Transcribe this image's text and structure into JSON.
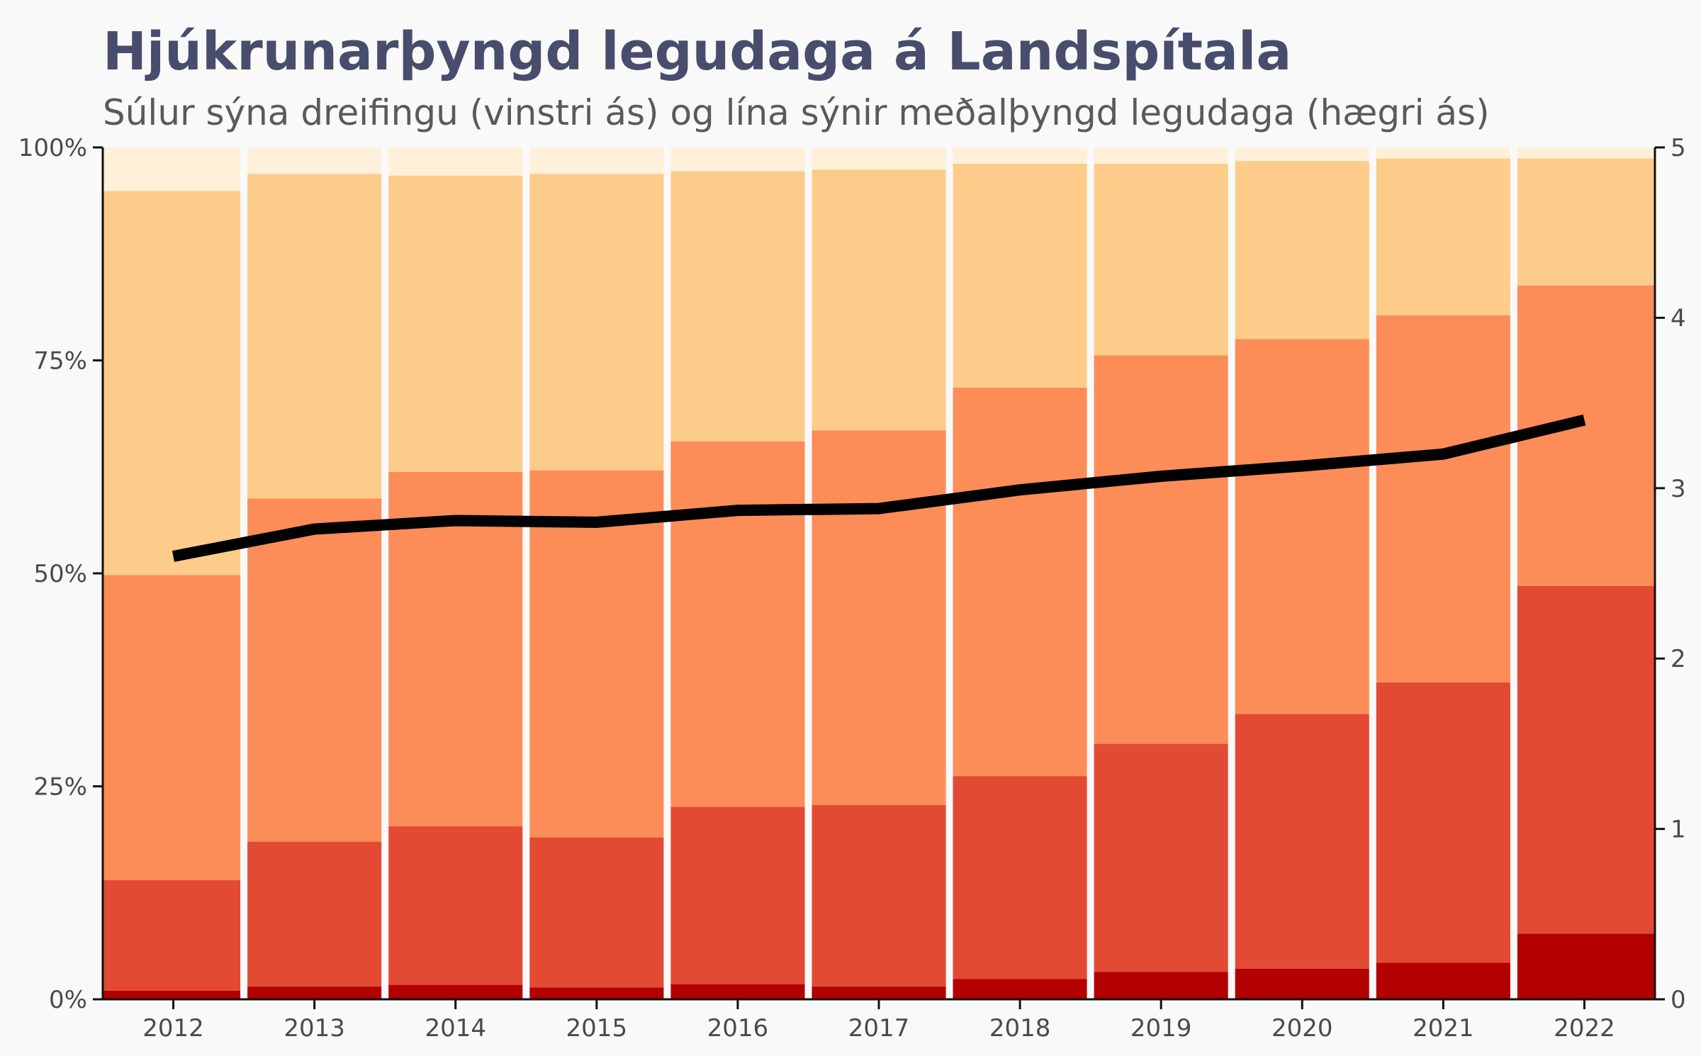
{
  "title": "Hjúkrunarþyngd legudaga á Landspítala",
  "subtitle": "Súlur sýna dreifingu (vinstri ás) og lína sýnir meðalþyngd legudaga (hægri ás)",
  "chart_data": {
    "type": "bar",
    "stacked": true,
    "stacked_percent": true,
    "categories": [
      "2012",
      "2013",
      "2014",
      "2015",
      "2016",
      "2017",
      "2018",
      "2019",
      "2020",
      "2021",
      "2022"
    ],
    "series": [
      {
        "color": "#b30000",
        "values": [
          1.0,
          1.5,
          1.7,
          1.4,
          1.8,
          1.5,
          2.4,
          3.2,
          3.6,
          4.3,
          7.7
        ]
      },
      {
        "color": "#e34a33",
        "values": [
          13.0,
          17.0,
          18.6,
          17.6,
          20.8,
          21.3,
          23.8,
          26.8,
          29.9,
          32.9,
          40.8
        ]
      },
      {
        "color": "#fc8d59",
        "values": [
          35.8,
          40.3,
          41.6,
          43.1,
          42.9,
          44.0,
          45.6,
          45.6,
          44.0,
          43.1,
          35.3
        ]
      },
      {
        "color": "#fdcc8a",
        "values": [
          45.1,
          38.1,
          34.8,
          34.8,
          31.7,
          30.6,
          26.3,
          22.5,
          20.9,
          18.4,
          14.9
        ]
      },
      {
        "color": "#fef0d9",
        "values": [
          5.1,
          3.1,
          3.3,
          3.1,
          2.8,
          2.6,
          1.9,
          1.9,
          1.6,
          1.3,
          1.3
        ]
      }
    ],
    "line": {
      "axis": "right",
      "color": "#000000",
      "values": [
        2.6,
        2.76,
        2.81,
        2.8,
        2.87,
        2.88,
        2.99,
        3.07,
        3.13,
        3.2,
        3.4
      ]
    },
    "y_left": {
      "ylim": [
        0,
        100
      ],
      "ticks": [
        "0%",
        "25%",
        "50%",
        "75%",
        "100%"
      ]
    },
    "y_right": {
      "ylim": [
        0,
        5
      ],
      "ticks": [
        "0",
        "1",
        "2",
        "3",
        "4",
        "5"
      ]
    }
  }
}
